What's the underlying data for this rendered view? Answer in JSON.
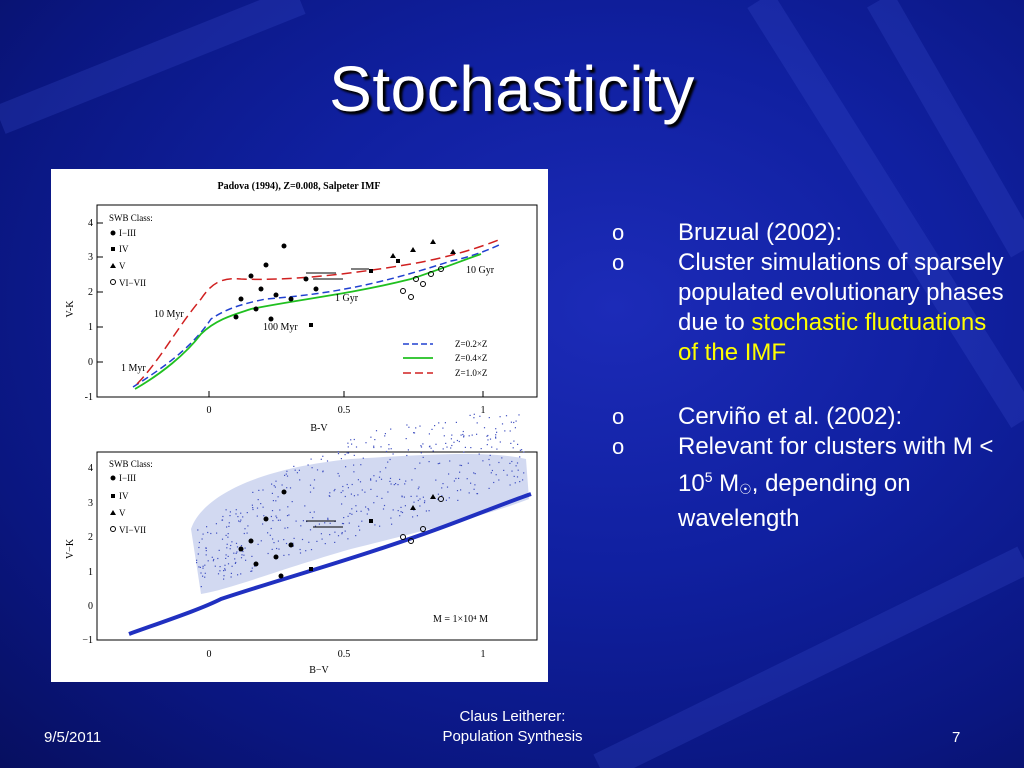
{
  "slide": {
    "title": "Stochasticity",
    "footer_date": "9/5/2011",
    "footer_center_line1": "Claus Leitherer:",
    "footer_center_line2": "Population Synthesis",
    "page_number": "7"
  },
  "bullets": [
    {
      "marker": "o",
      "text": "Bruzual (2002):"
    },
    {
      "marker": "o",
      "text_plain": "Cluster simulations of sparsely populated evolutionary phases due to ",
      "text_highlight": "stochastic fluctuations of the IMF"
    },
    {
      "marker": "o",
      "text": "Cerviño et al. (2002):"
    },
    {
      "marker": "o",
      "text_a": "Relevant for clusters with M < 10",
      "sup": "5",
      "text_b": " M",
      "sun_symbol": "☉",
      "text_c": ", depending on wavelength"
    }
  ],
  "colors": {
    "highlight": "#ffff00",
    "background": "#1020a0"
  },
  "figure": {
    "top_panel": {
      "title": "Padova (1994), Z=0.008, Salpeter IMF",
      "legend_title": "SWB Class:",
      "legend_items": [
        "I−III",
        "IV",
        "V",
        "VI−VII"
      ],
      "age_labels": [
        "1 Myr",
        "10 Myr",
        "100 Myr",
        "1 Gyr",
        "10 Gyr"
      ],
      "track_legend": [
        "Z=0.2×Z",
        "Z=0.4×Z",
        "Z=1.0×Z"
      ],
      "xlabel": "B-V",
      "ylabel": "V-K",
      "xticks": [
        "0",
        "0.5",
        "1"
      ],
      "yticks": [
        "-1",
        "0",
        "1",
        "2",
        "3",
        "4"
      ]
    },
    "bottom_panel": {
      "legend_title": "SWB Class:",
      "legend_items": [
        "I−III",
        "IV",
        "V",
        "VI−VII"
      ],
      "mass_label": "M = 1×10⁴ M",
      "xlabel": "B−V",
      "ylabel": "V−K",
      "xticks": [
        "0",
        "0.5",
        "1"
      ],
      "yticks": [
        "−1",
        "0",
        "1",
        "2",
        "3",
        "4"
      ]
    }
  }
}
